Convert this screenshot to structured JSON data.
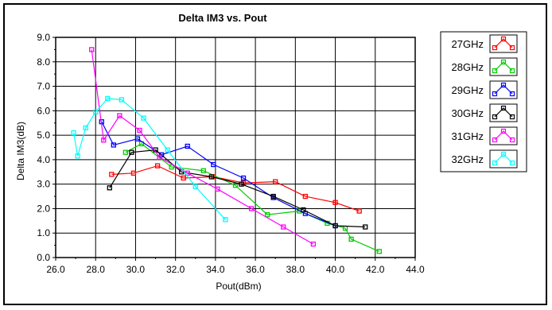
{
  "chart_data": {
    "type": "line",
    "title": "Delta IM3 vs. Pout",
    "xlabel": "Pout(dBm)",
    "ylabel": "Delta IM3(dB)",
    "xlim": [
      26.0,
      44.0
    ],
    "ylim": [
      0.0,
      9.0
    ],
    "xticks": [
      "26.0",
      "28.0",
      "30.0",
      "32.0",
      "34.0",
      "36.0",
      "38.0",
      "40.0",
      "42.0",
      "44.0"
    ],
    "yticks": [
      "0.0",
      "1.0",
      "2.0",
      "3.0",
      "4.0",
      "5.0",
      "6.0",
      "7.0",
      "8.0",
      "9.0"
    ],
    "grid": true,
    "legend_position": "right",
    "series": [
      {
        "name": "27GHz",
        "color": "#ff0000",
        "points": [
          [
            28.8,
            3.4
          ],
          [
            29.9,
            3.45
          ],
          [
            31.1,
            3.75
          ],
          [
            32.4,
            3.25
          ],
          [
            33.9,
            3.3
          ],
          [
            35.4,
            3.05
          ],
          [
            37.0,
            3.1
          ],
          [
            38.5,
            2.5
          ],
          [
            40.0,
            2.25
          ],
          [
            41.2,
            1.9
          ]
        ]
      },
      {
        "name": "28GHz",
        "color": "#00cc00",
        "points": [
          [
            29.5,
            4.3
          ],
          [
            30.3,
            4.65
          ],
          [
            31.8,
            3.7
          ],
          [
            33.4,
            3.55
          ],
          [
            35.0,
            2.95
          ],
          [
            36.6,
            1.75
          ],
          [
            38.2,
            1.9
          ],
          [
            39.6,
            1.4
          ],
          [
            40.5,
            1.2
          ],
          [
            40.8,
            0.75
          ],
          [
            42.2,
            0.25
          ]
        ]
      },
      {
        "name": "29GHz",
        "color": "#0000ff",
        "points": [
          [
            28.3,
            5.55
          ],
          [
            28.9,
            4.6
          ],
          [
            30.1,
            4.85
          ],
          [
            31.3,
            4.2
          ],
          [
            32.6,
            4.55
          ],
          [
            33.9,
            3.8
          ],
          [
            35.4,
            3.25
          ],
          [
            36.9,
            2.45
          ],
          [
            38.5,
            1.8
          ],
          [
            40.0,
            1.3
          ]
        ]
      },
      {
        "name": "30GHz",
        "color": "#000000",
        "points": [
          [
            28.7,
            2.85
          ],
          [
            29.8,
            4.3
          ],
          [
            31.0,
            4.4
          ],
          [
            32.3,
            3.5
          ],
          [
            33.8,
            3.3
          ],
          [
            35.3,
            3.0
          ],
          [
            36.9,
            2.5
          ],
          [
            38.4,
            1.95
          ],
          [
            40.0,
            1.3
          ],
          [
            41.5,
            1.25
          ]
        ]
      },
      {
        "name": "31GHz",
        "color": "#ff00ff",
        "points": [
          [
            27.8,
            8.5
          ],
          [
            28.4,
            4.8
          ],
          [
            29.2,
            5.8
          ],
          [
            30.2,
            5.2
          ],
          [
            31.2,
            4.1
          ],
          [
            32.6,
            3.45
          ],
          [
            34.1,
            2.8
          ],
          [
            35.8,
            2.0
          ],
          [
            37.4,
            1.25
          ],
          [
            38.9,
            0.55
          ]
        ]
      },
      {
        "name": "32GHz",
        "color": "#00ffff",
        "points": [
          [
            26.9,
            5.1
          ],
          [
            27.1,
            4.15
          ],
          [
            27.5,
            5.3
          ],
          [
            28.0,
            5.95
          ],
          [
            28.6,
            6.5
          ],
          [
            29.3,
            6.45
          ],
          [
            30.4,
            5.7
          ],
          [
            31.6,
            4.4
          ],
          [
            33.0,
            2.9
          ],
          [
            34.5,
            1.55
          ]
        ]
      }
    ]
  }
}
